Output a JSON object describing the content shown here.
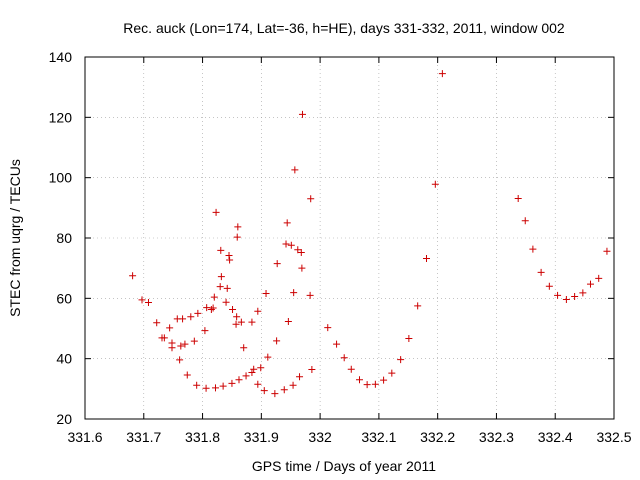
{
  "chart_data": {
    "type": "scatter",
    "title": "Rec. auck (Lon=174, Lat=-36, h=HE), days 331-332, 2011, window 002",
    "xlabel": "GPS time / Days of year 2011",
    "ylabel": "STEC from uqrg / TECUs",
    "xlim": [
      331.6,
      332.5
    ],
    "ylim": [
      20,
      140
    ],
    "x_ticks": [
      "331.6",
      "331.7",
      "331.8",
      "331.9",
      "332",
      "332.1",
      "332.2",
      "332.3",
      "332.4",
      "332.5"
    ],
    "y_ticks": [
      "20",
      "40",
      "60",
      "80",
      "100",
      "120",
      "140"
    ],
    "grid": true,
    "marker": "+",
    "color": "#cc0000",
    "points": [
      [
        331.681,
        67.5
      ],
      [
        331.697,
        59.5
      ],
      [
        331.708,
        58.6
      ],
      [
        331.722,
        51.9
      ],
      [
        331.731,
        46.9
      ],
      [
        331.735,
        46.9
      ],
      [
        331.744,
        50.2
      ],
      [
        331.748,
        45.2
      ],
      [
        331.748,
        43.6
      ],
      [
        331.757,
        53.2
      ],
      [
        331.761,
        39.6
      ],
      [
        331.763,
        44.2
      ],
      [
        331.766,
        53.2
      ],
      [
        331.77,
        44.8
      ],
      [
        331.774,
        34.6
      ],
      [
        331.78,
        53.9
      ],
      [
        331.786,
        45.8
      ],
      [
        331.79,
        31.2
      ],
      [
        331.792,
        55.0
      ],
      [
        331.804,
        49.3
      ],
      [
        331.806,
        30.2
      ],
      [
        331.807,
        56.9
      ],
      [
        331.815,
        56.3
      ],
      [
        331.818,
        56.8
      ],
      [
        331.82,
        60.4
      ],
      [
        331.822,
        30.3
      ],
      [
        331.823,
        88.5
      ],
      [
        331.83,
        63.9
      ],
      [
        331.831,
        75.9
      ],
      [
        331.832,
        67.2
      ],
      [
        331.835,
        30.9
      ],
      [
        331.84,
        58.7
      ],
      [
        331.842,
        63.3
      ],
      [
        331.845,
        74.2
      ],
      [
        331.846,
        72.7
      ],
      [
        331.85,
        31.8
      ],
      [
        331.851,
        56.3
      ],
      [
        331.857,
        51.4
      ],
      [
        331.858,
        53.9
      ],
      [
        331.859,
        80.3
      ],
      [
        331.86,
        83.7
      ],
      [
        331.862,
        33.0
      ],
      [
        331.866,
        52.1
      ],
      [
        331.87,
        43.6
      ],
      [
        331.874,
        34.3
      ],
      [
        331.884,
        35.4
      ],
      [
        331.884,
        52.1
      ],
      [
        331.887,
        36.5
      ],
      [
        331.894,
        55.7
      ],
      [
        331.894,
        31.5
      ],
      [
        331.899,
        37.0
      ],
      [
        331.905,
        29.4
      ],
      [
        331.908,
        61.6
      ],
      [
        331.911,
        40.5
      ],
      [
        331.923,
        28.4
      ],
      [
        331.926,
        45.9
      ],
      [
        331.927,
        71.5
      ],
      [
        331.939,
        29.7
      ],
      [
        331.942,
        78.0
      ],
      [
        331.944,
        85.0
      ],
      [
        331.946,
        52.3
      ],
      [
        331.951,
        77.6
      ],
      [
        331.954,
        31.2
      ],
      [
        331.955,
        61.9
      ],
      [
        331.957,
        102.6
      ],
      [
        331.962,
        76.1
      ],
      [
        331.965,
        34.0
      ],
      [
        331.968,
        75.2
      ],
      [
        331.969,
        70.0
      ],
      [
        331.97,
        121.0
      ],
      [
        331.983,
        61.0
      ],
      [
        331.984,
        93.0
      ],
      [
        331.986,
        36.4
      ],
      [
        332.013,
        50.3
      ],
      [
        332.028,
        44.8
      ],
      [
        332.041,
        40.3
      ],
      [
        332.053,
        36.5
      ],
      [
        332.067,
        33.0
      ],
      [
        332.08,
        31.4
      ],
      [
        332.094,
        31.5
      ],
      [
        332.108,
        32.9
      ],
      [
        332.122,
        35.2
      ],
      [
        332.137,
        39.7
      ],
      [
        332.151,
        46.7
      ],
      [
        332.166,
        57.5
      ],
      [
        332.181,
        73.2
      ],
      [
        332.196,
        97.8
      ],
      [
        332.208,
        134.5
      ],
      [
        332.337,
        93.1
      ],
      [
        332.349,
        85.7
      ],
      [
        332.362,
        76.3
      ],
      [
        332.376,
        68.6
      ],
      [
        332.39,
        64.0
      ],
      [
        332.404,
        61.0
      ],
      [
        332.419,
        59.6
      ],
      [
        332.433,
        60.6
      ],
      [
        332.447,
        61.8
      ],
      [
        332.46,
        64.7
      ],
      [
        332.474,
        66.6
      ],
      [
        332.488,
        75.6
      ]
    ]
  }
}
